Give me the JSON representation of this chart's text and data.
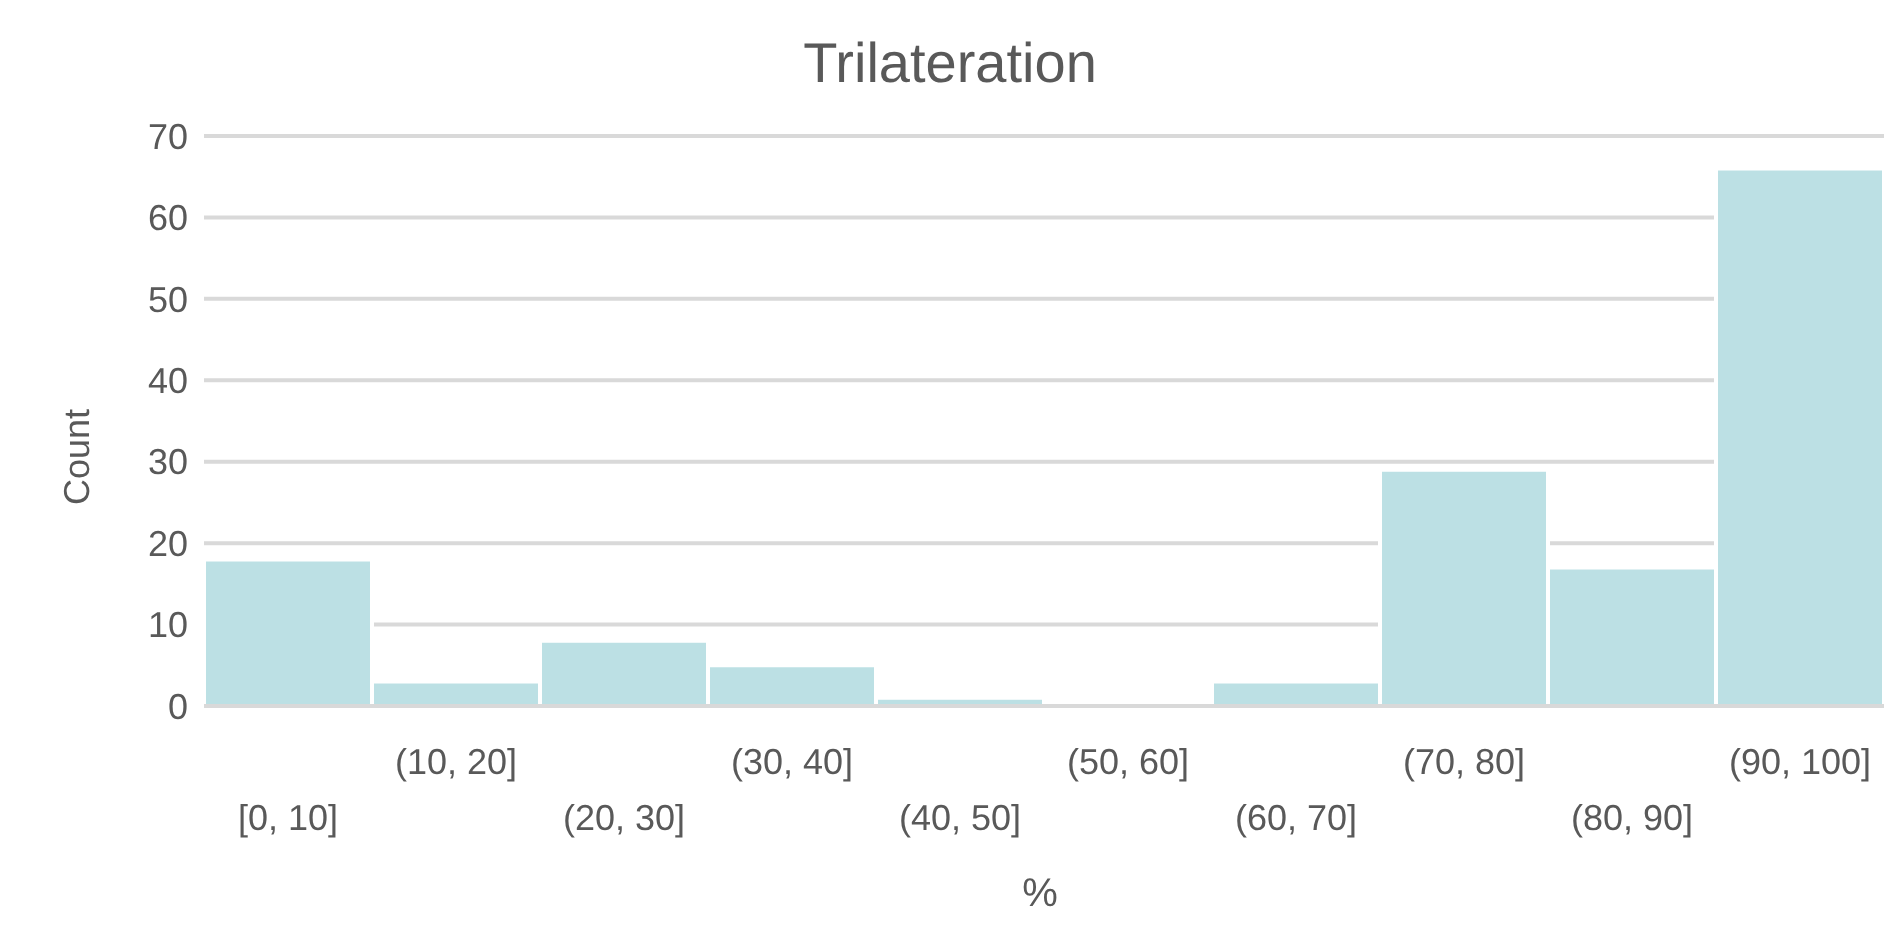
{
  "chart_data": {
    "type": "bar",
    "title": "Trilateration",
    "xlabel": "%",
    "ylabel": "Count",
    "categories": [
      "[0, 10]",
      "(10, 20]",
      "(20, 30]",
      "(30, 40]",
      "(40, 50]",
      "(50, 60]",
      "(60, 70]",
      "(70, 80]",
      "(80, 90]",
      "(90, 100]"
    ],
    "values": [
      18,
      3,
      8,
      5,
      1,
      0,
      3,
      29,
      17,
      66
    ],
    "color": "#bce0e4",
    "ylim": [
      0,
      70
    ],
    "yticks": [
      0,
      10,
      20,
      30,
      40,
      50,
      60,
      70
    ],
    "grid": "y",
    "legend": false
  }
}
